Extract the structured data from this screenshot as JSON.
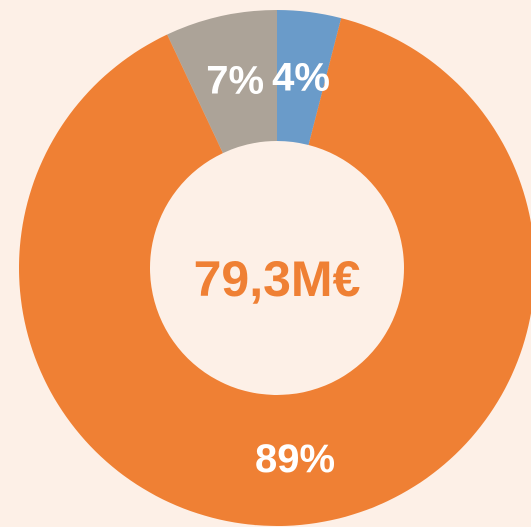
{
  "chart_data": {
    "type": "donut",
    "center_label": "79,3M€",
    "values": [
      4,
      89,
      7
    ],
    "value_labels": [
      "4%",
      "89%",
      "7%"
    ],
    "colors": [
      "#6a9bc9",
      "#ef8034",
      "#aca398"
    ]
  }
}
